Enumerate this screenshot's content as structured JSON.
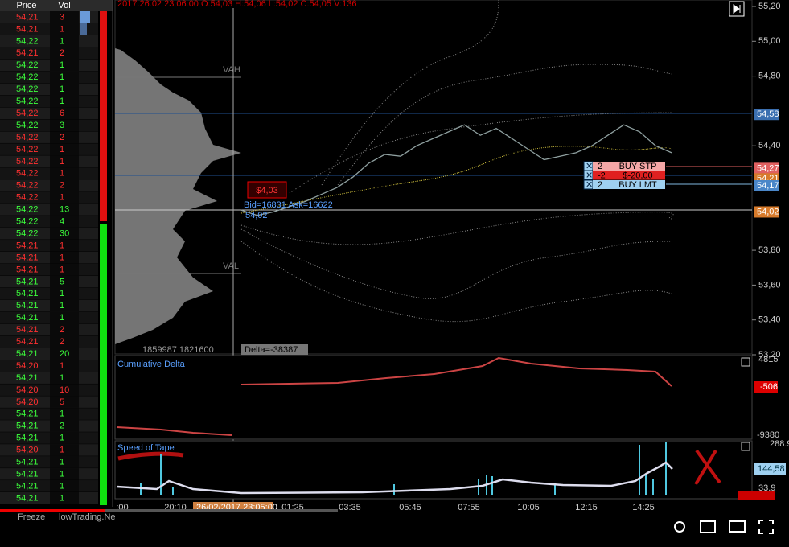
{
  "tape": {
    "headers": [
      "Price",
      "Vol"
    ],
    "rows": [
      {
        "price": "54,21",
        "vol": "3",
        "color": "#ff3030"
      },
      {
        "price": "54,21",
        "vol": "1",
        "color": "#ff3030"
      },
      {
        "price": "54,22",
        "vol": "1",
        "color": "#3cff3c"
      },
      {
        "price": "54,21",
        "vol": "2",
        "color": "#ff3030"
      },
      {
        "price": "54,22",
        "vol": "1",
        "color": "#3cff3c"
      },
      {
        "price": "54,22",
        "vol": "1",
        "color": "#3cff3c"
      },
      {
        "price": "54,22",
        "vol": "1",
        "color": "#3cff3c"
      },
      {
        "price": "54,22",
        "vol": "1",
        "color": "#3cff3c"
      },
      {
        "price": "54,22",
        "vol": "6",
        "color": "#ff3030"
      },
      {
        "price": "54,22",
        "vol": "3",
        "color": "#3cff3c"
      },
      {
        "price": "54,22",
        "vol": "2",
        "color": "#ff3030"
      },
      {
        "price": "54,22",
        "vol": "1",
        "color": "#ff3030"
      },
      {
        "price": "54,22",
        "vol": "1",
        "color": "#ff3030"
      },
      {
        "price": "54,22",
        "vol": "1",
        "color": "#ff3030"
      },
      {
        "price": "54,22",
        "vol": "2",
        "color": "#ff3030"
      },
      {
        "price": "54,22",
        "vol": "1",
        "color": "#ff3030"
      },
      {
        "price": "54,22",
        "vol": "13",
        "color": "#3cff3c"
      },
      {
        "price": "54,22",
        "vol": "4",
        "color": "#3cff3c"
      },
      {
        "price": "54,22",
        "vol": "30",
        "color": "#3cff3c"
      },
      {
        "price": "54,21",
        "vol": "1",
        "color": "#ff3030"
      },
      {
        "price": "54,21",
        "vol": "1",
        "color": "#ff3030"
      },
      {
        "price": "54,21",
        "vol": "1",
        "color": "#ff3030"
      },
      {
        "price": "54,21",
        "vol": "5",
        "color": "#3cff3c"
      },
      {
        "price": "54,21",
        "vol": "1",
        "color": "#3cff3c"
      },
      {
        "price": "54,21",
        "vol": "1",
        "color": "#3cff3c"
      },
      {
        "price": "54,21",
        "vol": "1",
        "color": "#3cff3c"
      },
      {
        "price": "54,21",
        "vol": "2",
        "color": "#ff3030"
      },
      {
        "price": "54,21",
        "vol": "2",
        "color": "#ff3030"
      },
      {
        "price": "54,21",
        "vol": "20",
        "color": "#3cff3c"
      },
      {
        "price": "54,20",
        "vol": "1",
        "color": "#ff3030"
      },
      {
        "price": "54,21",
        "vol": "1",
        "color": "#3cff3c"
      },
      {
        "price": "54,20",
        "vol": "10",
        "color": "#ff3030"
      },
      {
        "price": "54,20",
        "vol": "5",
        "color": "#ff3030"
      },
      {
        "price": "54,21",
        "vol": "1",
        "color": "#3cff3c"
      },
      {
        "price": "54,21",
        "vol": "2",
        "color": "#3cff3c"
      },
      {
        "price": "54,21",
        "vol": "1",
        "color": "#3cff3c"
      },
      {
        "price": "54,20",
        "vol": "1",
        "color": "#ff3030"
      },
      {
        "price": "54,21",
        "vol": "1",
        "color": "#3cff3c"
      },
      {
        "price": "54,21",
        "vol": "1",
        "color": "#3cff3c"
      },
      {
        "price": "54,21",
        "vol": "1",
        "color": "#3cff3c"
      },
      {
        "price": "54,21",
        "vol": "1",
        "color": "#3cff3c"
      }
    ],
    "freeze": "Freeze",
    "link": "lowTrading.Ne"
  },
  "chart": {
    "header": "2017.26.02 23:06:00   O:54,03   H:54,06   L:54,02   C:54,05   V:136",
    "price_axis": [
      "55,20",
      "55,00",
      "54,80",
      "54,40",
      "53,80",
      "53,60",
      "53,40",
      "53,20"
    ],
    "markers": [
      {
        "label": "54,58",
        "color": "#3b6fb0"
      },
      {
        "label": "54,27",
        "color": "#e06060"
      },
      {
        "label": "54,21",
        "color": "#d77a2a"
      },
      {
        "label": "54,17",
        "color": "#4a86c8"
      },
      {
        "label": "54,02",
        "color": "#d77a2a"
      }
    ],
    "time_axis": [
      ":00",
      "20:10",
      "01:25",
      "03:35",
      "05:45",
      "07:55",
      "10:05",
      "12:15",
      "14:25"
    ],
    "crosshair_time": "26/02/2017 23:05:00",
    "vah": "VAH",
    "val": "VAL",
    "profile_volumes": "1859987 1821600",
    "delta": "Delta=-38387",
    "cursor_price": "$4,03",
    "bid_ask": "Bid=16831 Ask=16622",
    "cursor_last": "54,02",
    "orders": [
      {
        "qty": "2",
        "label": "BUY STP",
        "color": "#f4a6a6"
      },
      {
        "qty": "-2",
        "label": "$-20,00",
        "color": "#e02020"
      },
      {
        "qty": "2",
        "label": "BUY LMT",
        "color": "#9fd0f0"
      }
    ],
    "price_series": [
      54.03,
      54.0,
      54.02,
      54.05,
      54.08,
      54.12,
      54.16,
      54.22,
      54.3,
      54.35,
      54.34,
      54.4,
      54.44,
      54.48,
      54.52,
      54.46,
      54.5,
      54.44,
      54.38,
      54.32,
      54.34,
      54.36,
      54.4,
      54.46,
      54.52,
      54.48,
      54.4,
      54.36
    ]
  },
  "cumulative_delta": {
    "title": "Cumulative Delta",
    "top": "4815",
    "bottom": "-9380",
    "last": "-506"
  },
  "speed_of_tape": {
    "title": "Speed of Tape",
    "top": "288.9",
    "bottom": "33.9",
    "last": "144,58"
  }
}
